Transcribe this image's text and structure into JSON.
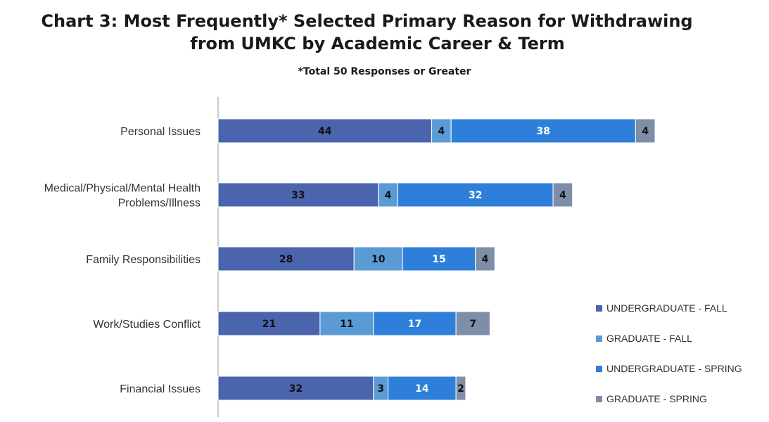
{
  "chart_data": {
    "type": "bar",
    "orientation": "horizontal",
    "stacked": true,
    "title_line1": "Chart 3: Most Frequently* Selected Primary Reason for Withdrawing",
    "title_line2": "from UMKC by Academic Career & Term",
    "subtitle": "*Total 50 Responses or Greater",
    "categories": [
      "Personal Issues",
      "Medical/Physical/Mental Health Problems/Illness",
      "Family Responsibilities",
      "Work/Studies Conflict",
      "Financial Issues"
    ],
    "category_lines": [
      [
        "Personal Issues"
      ],
      [
        "Medical/Physical/Mental Health",
        "Problems/Illness"
      ],
      [
        "Family Responsibilities"
      ],
      [
        "Work/Studies Conflict"
      ],
      [
        "Financial Issues"
      ]
    ],
    "series": [
      {
        "name": "UNDERGRADUATE - FALL",
        "values": [
          44,
          33,
          28,
          21,
          32
        ],
        "color": "#4a64ad",
        "label_color": "#111111"
      },
      {
        "name": "GRADUATE - FALL",
        "values": [
          4,
          4,
          10,
          11,
          3
        ],
        "color": "#5b9bd5",
        "label_color": "#111111"
      },
      {
        "name": "UNDERGRADUATE - SPRING",
        "values": [
          38,
          32,
          15,
          17,
          14
        ],
        "color": "#2e7fd9",
        "label_color": "#ffffff"
      },
      {
        "name": "GRADUATE - SPRING",
        "values": [
          4,
          4,
          4,
          7,
          2
        ],
        "color": "#7f8ea8",
        "label_color": "#111111"
      }
    ],
    "xlim": [
      0,
      100
    ],
    "grid": false,
    "legend_position": "right"
  }
}
